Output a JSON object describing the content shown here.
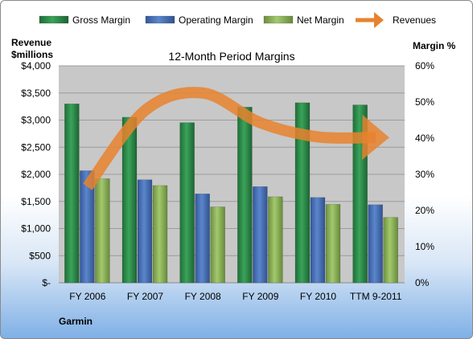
{
  "chart_data": {
    "type": "bar",
    "title": "12-Month Period Margins",
    "left_axis_label_line1": "Revenue",
    "left_axis_label_line2": "$millions",
    "right_axis_label": "Margin %",
    "company": "Garmin",
    "categories": [
      "FY 2006",
      "FY 2007",
      "FY 2008",
      "FY 2009",
      "FY 2010",
      "TTM 9-2011"
    ],
    "left_ticks": [
      "$-",
      "$500",
      "$1,000",
      "$1,500",
      "$2,000",
      "$2,500",
      "$3,000",
      "$3,500",
      "$4,000"
    ],
    "right_ticks": [
      "0%",
      "10%",
      "20%",
      "30%",
      "40%",
      "50%",
      "60%"
    ],
    "ylim_left": [
      0,
      4000
    ],
    "ylim_right": [
      0,
      60
    ],
    "legend_position": "top",
    "grid": true,
    "series": [
      {
        "name": "Gross Margin",
        "kind": "bar",
        "axis": "right",
        "color": "#2e8b4a",
        "values": [
          49.5,
          45.8,
          44.3,
          48.6,
          49.8,
          49.2
        ]
      },
      {
        "name": "Operating Margin",
        "kind": "bar",
        "axis": "right",
        "color": "#4a72b8",
        "values": [
          31.0,
          28.5,
          24.6,
          26.6,
          23.6,
          21.6
        ]
      },
      {
        "name": "Net Margin",
        "kind": "bar",
        "axis": "right",
        "color": "#8cb358",
        "values": [
          28.8,
          26.9,
          21.0,
          23.8,
          21.7,
          18.1
        ]
      },
      {
        "name": "Revenues",
        "kind": "line",
        "axis": "left",
        "color": "#e8822e",
        "values": [
          1770,
          3180,
          3500,
          2950,
          2690,
          2680
        ]
      }
    ]
  }
}
